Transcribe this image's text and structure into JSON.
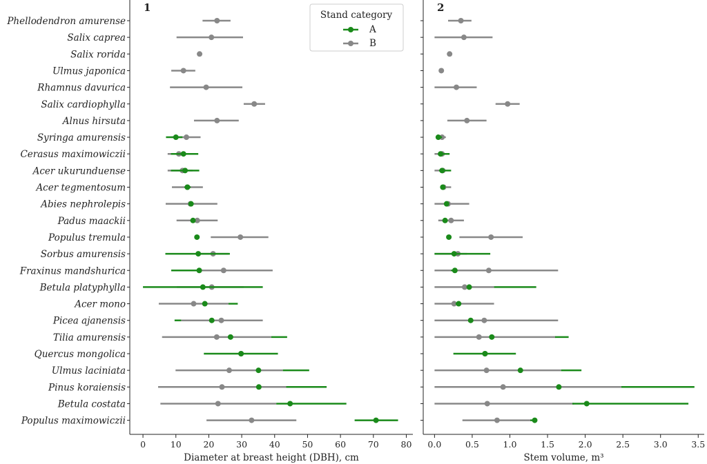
{
  "colors": {
    "A": "#1a8a1a",
    "B": "#888888"
  },
  "chart_data": {
    "type": "scatter",
    "subtype": "dot-with-range",
    "species": [
      "Phellodendron amurense",
      "Salix caprea",
      "Salix rorida",
      "Ulmus japonica",
      "Rhamnus davurica",
      "Salix cardiophylla",
      "Alnus hirsuta",
      "Syringa amurensis",
      "Cerasus maximowiczii",
      "Acer ukurunduense",
      "Acer tegmentosum",
      "Abies nephrolepis",
      "Padus maackii",
      "Populus tremula",
      "Sorbus amurensis",
      "Fraxinus mandshurica",
      "Betula platyphylla",
      "Acer mono",
      "Picea ajanensis",
      "Tilia amurensis",
      "Quercus mongolica",
      "Ulmus laciniata",
      "Pinus koraiensis",
      "Betula costata",
      "Populus maximowiczii"
    ],
    "legend": {
      "title": "Stand category",
      "entries": [
        "A",
        "B"
      ],
      "position": "top-right of panel 1"
    },
    "panels": [
      {
        "label": "1",
        "xlabel": "Diameter at breast height (DBH), cm",
        "xlim": [
          -4,
          82
        ],
        "xticks": [
          0,
          10,
          20,
          30,
          40,
          50,
          60,
          70,
          80
        ],
        "series": [
          {
            "name": "A",
            "mean": [
              null,
              null,
              null,
              null,
              null,
              null,
              null,
              10,
              12.3,
              12.8,
              13.5,
              14.6,
              15.2,
              16.4,
              16.8,
              17.1,
              18.2,
              18.8,
              20.9,
              26.6,
              29.8,
              35.1,
              35.2,
              44.7,
              70.8
            ],
            "low": [
              null,
              null,
              null,
              null,
              null,
              null,
              null,
              7,
              8.5,
              8.5,
              12.6,
              14.6,
              15.2,
              16.4,
              6.8,
              8.6,
              0,
              26.0,
              9.6,
              39.0,
              18.5,
              42.5,
              43.5,
              40.5,
              64.3
            ],
            "high": [
              null,
              null,
              null,
              null,
              null,
              null,
              null,
              12,
              16.8,
              17.1,
              14.5,
              14.6,
              15.2,
              16.4,
              26.4,
              17.1,
              36.4,
              28.8,
              11.6,
              43.8,
              41.0,
              50.5,
              55.8,
              61.8,
              77.5
            ]
          },
          {
            "name": "B",
            "mean": [
              22.5,
              20.8,
              17.2,
              12.3,
              19.2,
              33.8,
              22.5,
              13.2,
              10.9,
              12.0,
              13.5,
              14.4,
              16.5,
              29.6,
              21.3,
              24.5,
              20.9,
              15.4,
              23.8,
              22.4,
              29.8,
              26.2,
              24.0,
              22.8,
              33.0
            ],
            "low": [
              18.1,
              10.2,
              17.2,
              8.6,
              8.2,
              30.6,
              15.5,
              8.7,
              7.5,
              7.5,
              8.8,
              6.9,
              10.2,
              20.6,
              16.6,
              8.6,
              10.3,
              4.8,
              11.6,
              5.8,
              29.8,
              9.9,
              4.6,
              5.3,
              19.3
            ],
            "high": [
              26.6,
              30.4,
              17.2,
              15.9,
              30.2,
              37.1,
              29.1,
              17.5,
              13.8,
              15.1,
              18.2,
              22.6,
              22.7,
              38.1,
              26.0,
              39.4,
              30.6,
              26.0,
              36.4,
              39.0,
              29.8,
              42.5,
              43.5,
              40.5,
              46.6
            ]
          }
        ]
      },
      {
        "label": "2",
        "xlabel": "Stem volume, m³",
        "xlim": [
          -0.15,
          3.58
        ],
        "xticks": [
          0.0,
          0.5,
          1.0,
          1.5,
          2.0,
          2.5,
          3.0,
          3.5
        ],
        "series": [
          {
            "name": "A",
            "mean": [
              null,
              null,
              null,
              null,
              null,
              null,
              null,
              0.05,
              0.08,
              0.1,
              0.11,
              0.16,
              0.14,
              0.19,
              0.26,
              0.27,
              0.46,
              0.32,
              0.48,
              0.76,
              0.67,
              1.14,
              1.65,
              2.02,
              1.33
            ],
            "low": [
              null,
              null,
              null,
              null,
              null,
              null,
              null,
              0.02,
              0.05,
              0.06,
              0.09,
              0.16,
              0.14,
              0.19,
              0.0,
              0.22,
              0.79,
              0.28,
              0.45,
              1.6,
              0.25,
              1.68,
              2.48,
              1.83,
              1.27
            ],
            "high": [
              null,
              null,
              null,
              null,
              null,
              null,
              null,
              0.1,
              0.2,
              0.22,
              0.11,
              0.16,
              0.14,
              0.19,
              0.74,
              0.27,
              1.35,
              0.32,
              0.48,
              1.78,
              1.08,
              1.95,
              3.45,
              3.37,
              1.33
            ]
          },
          {
            "name": "B",
            "mean": [
              0.35,
              0.39,
              0.2,
              0.09,
              0.29,
              0.97,
              0.43,
              0.1,
              0.1,
              0.11,
              0.12,
              0.18,
              0.22,
              0.75,
              0.31,
              0.72,
              0.4,
              0.26,
              0.66,
              0.59,
              0.67,
              0.69,
              0.91,
              0.7,
              0.83
            ],
            "low": [
              0.18,
              0.0,
              0.2,
              0.06,
              0.0,
              0.81,
              0.17,
              0.02,
              0.0,
              0.0,
              0.08,
              0.0,
              0.05,
              0.33,
              0.0,
              0.0,
              0.0,
              0.0,
              0.0,
              0.0,
              0.67,
              0.0,
              0.0,
              0.0,
              0.37
            ],
            "high": [
              0.49,
              0.77,
              0.2,
              0.12,
              0.56,
              1.13,
              0.69,
              0.15,
              0.15,
              0.13,
              0.22,
              0.46,
              0.39,
              1.17,
              0.43,
              1.64,
              0.79,
              0.79,
              1.64,
              1.61,
              0.67,
              1.68,
              2.48,
              1.85,
              1.27
            ]
          }
        ]
      }
    ]
  }
}
